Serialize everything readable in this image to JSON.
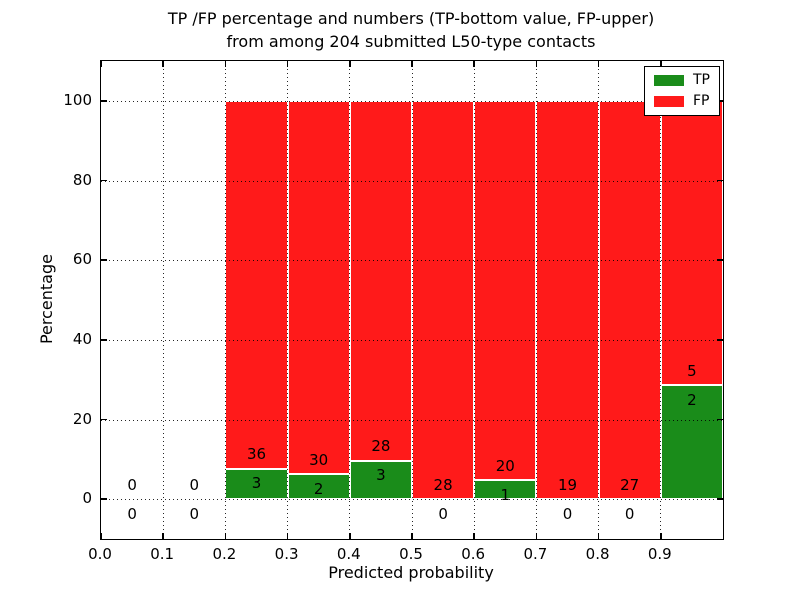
{
  "figure": {
    "title_line1": "TP /FP percentage and numbers (TP-bottom value, FP-upper)",
    "title_line2": "from among 204 submitted L50-type contacts"
  },
  "chart_data": {
    "type": "bar",
    "stacked": true,
    "normalized": "each bar stacked to 100%",
    "title": "TP /FP percentage and numbers (TP-bottom value, FP-upper) from among 204 submitted L50-type contacts",
    "xlabel": "Predicted probability",
    "ylabel": "Percentage",
    "xlim": [
      0.0,
      1.0
    ],
    "ylim": [
      -10,
      110
    ],
    "bin_width": 0.1,
    "bin_starts": [
      0.0,
      0.1,
      0.2,
      0.3,
      0.4,
      0.5,
      0.6,
      0.7,
      0.8,
      0.9
    ],
    "xtick_labels": [
      "0.0",
      "0.1",
      "0.2",
      "0.3",
      "0.4",
      "0.5",
      "0.6",
      "0.7",
      "0.8",
      "0.9"
    ],
    "ytick_values": [
      0,
      20,
      40,
      60,
      80,
      100
    ],
    "grid": "dotted black, drawn above bars",
    "bar_edge_color": "#ffffff",
    "total_contacts": 204,
    "series": [
      {
        "name": "TP",
        "color": "#1a8c1a",
        "counts": [
          0,
          0,
          3,
          2,
          3,
          0,
          1,
          0,
          0,
          2
        ]
      },
      {
        "name": "FP",
        "color": "#ff1a1a",
        "counts": [
          0,
          0,
          36,
          30,
          28,
          28,
          20,
          19,
          27,
          5
        ]
      }
    ],
    "tp_percent_per_bin": [
      0,
      0,
      7.69,
      6.25,
      9.68,
      0,
      4.76,
      0,
      0,
      28.57
    ],
    "legend": {
      "position": "upper right",
      "entries": [
        {
          "label": "TP",
          "color": "#1a8c1a"
        },
        {
          "label": "FP",
          "color": "#ff1a1a"
        }
      ]
    }
  }
}
